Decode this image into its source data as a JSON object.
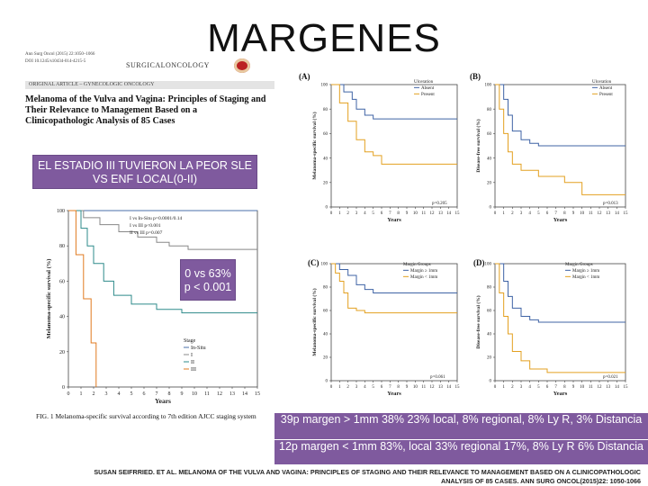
{
  "slide": {
    "title": "MARGENES"
  },
  "paper": {
    "journal_line": "Ann Surg Oncol (2015) 22:1050–1066",
    "doi_line": "DOI 10.1245/s10434-014-4215-5",
    "journal_name": "SURGICALONCOLOGY",
    "article_type": "ORIGINAL ARTICLE – GYNECOLOGIC ONCOLOGY",
    "title": "Melanoma of the Vulva and Vagina: Principles of Staging and Their Relevance to Management Based on a Clinicopathologic Analysis of 85 Cases"
  },
  "callouts": {
    "stage": "EL ESTADIO III TUVIERON LA PEOR SLE VS ENF LOCAL(0-II)",
    "pvalue_line1": "0 vs 63%",
    "pvalue_line2": "p < 0.001",
    "margin_pos": "39p margen > 1mm 38% 23% local, 8% regional, 8% Ly R, 3% Distancia",
    "margin_neg": "12p margen < 1mm 83%, local 33% regional 17%, 8% Ly R 6% Distancia"
  },
  "citation": {
    "line1": "SUSAN SEIFRRIED. ET AL. MELANOMA OF THE VULVA AND VAGINA: PRINCIPLES OF STAGING AND THEIR RELEVANCE TO MANAGEMENT BASED ON A CLINICOPATHOLOGIC",
    "line2": "ANALYSIS OF 85 CASES. ANN SURG ONCOL(2015)22: 1050-1066"
  },
  "figure": {
    "caption": "FIG. 1  Melanoma-specific survival according to 7th edition AJCC staging system"
  },
  "chart_data": [
    {
      "id": "fig1",
      "type": "line",
      "title": "",
      "xlabel": "Years",
      "ylabel": "Melanoma-specific survival (%)",
      "xlim": [
        0,
        15
      ],
      "ylim": [
        0,
        100
      ],
      "x_ticks": [
        "0",
        "1",
        "2",
        "3",
        "4",
        "5",
        "6",
        "7",
        "8",
        "9",
        "10",
        "11",
        "12",
        "13",
        "14",
        "15"
      ],
      "y_ticks": [
        "0",
        "20",
        "40",
        "60",
        "80",
        "100"
      ],
      "annotations": [
        "I vs In-Situ p=0.0001/0.14",
        "I vs III p<0.001",
        "II vs III p=0.007"
      ],
      "legend_title": "Stage",
      "series": [
        {
          "name": "In-Situ",
          "color": "#4a6fa8",
          "steps": [
            [
              0,
              100
            ],
            [
              15,
              100
            ]
          ]
        },
        {
          "name": "I",
          "color": "#888888",
          "steps": [
            [
              0,
              100
            ],
            [
              1.2,
              96
            ],
            [
              2.5,
              92
            ],
            [
              4,
              88
            ],
            [
              5.5,
              85
            ],
            [
              7,
              82
            ],
            [
              8,
              80
            ],
            [
              9.5,
              78
            ],
            [
              15,
              78
            ]
          ]
        },
        {
          "name": "II",
          "color": "#2e8b8b",
          "steps": [
            [
              0,
              100
            ],
            [
              1,
              90
            ],
            [
              1.5,
              80
            ],
            [
              2,
              70
            ],
            [
              2.8,
              60
            ],
            [
              3.6,
              52
            ],
            [
              5,
              47
            ],
            [
              7,
              44
            ],
            [
              9,
              42
            ],
            [
              15,
              42
            ]
          ]
        },
        {
          "name": "III",
          "color": "#e07b20",
          "steps": [
            [
              0,
              100
            ],
            [
              0.6,
              75
            ],
            [
              1.2,
              50
            ],
            [
              1.8,
              25
            ],
            [
              2.2,
              0
            ]
          ]
        }
      ]
    },
    {
      "id": "A",
      "panel": "(A)",
      "type": "line",
      "xlabel": "Years",
      "ylabel": "Melanoma-specific survival (%)",
      "xlim": [
        0,
        15
      ],
      "ylim": [
        0,
        100
      ],
      "x_ticks": [
        "0",
        "1",
        "2",
        "3",
        "4",
        "5",
        "6",
        "7",
        "8",
        "9",
        "10",
        "11",
        "12",
        "13",
        "14",
        "15"
      ],
      "y_ticks": [
        "0",
        "20",
        "40",
        "60",
        "80",
        "100"
      ],
      "legend_title": "Ulceration",
      "pvalue": "p=0.205",
      "series": [
        {
          "name": "Absent",
          "color": "#3f63a5",
          "steps": [
            [
              0,
              100
            ],
            [
              1.5,
              94
            ],
            [
              2.5,
              88
            ],
            [
              3,
              80
            ],
            [
              4,
              75
            ],
            [
              5,
              72
            ],
            [
              15,
              72
            ]
          ]
        },
        {
          "name": "Present",
          "color": "#e3a020",
          "steps": [
            [
              0,
              100
            ],
            [
              1,
              85
            ],
            [
              2,
              70
            ],
            [
              3,
              55
            ],
            [
              4,
              45
            ],
            [
              5,
              42
            ],
            [
              6,
              35
            ],
            [
              15,
              35
            ]
          ]
        }
      ]
    },
    {
      "id": "B",
      "panel": "(B)",
      "type": "line",
      "xlabel": "Years",
      "ylabel": "Disease-free survival (%)",
      "xlim": [
        0,
        15
      ],
      "ylim": [
        0,
        100
      ],
      "x_ticks": [
        "0",
        "1",
        "2",
        "3",
        "4",
        "5",
        "6",
        "7",
        "8",
        "9",
        "10",
        "11",
        "12",
        "13",
        "14",
        "15"
      ],
      "y_ticks": [
        "0",
        "20",
        "40",
        "60",
        "80",
        "100"
      ],
      "legend_title": "Ulceration",
      "pvalue": "p=0.013",
      "series": [
        {
          "name": "Absent",
          "color": "#3f63a5",
          "steps": [
            [
              0,
              100
            ],
            [
              1,
              88
            ],
            [
              1.5,
              75
            ],
            [
              2,
              62
            ],
            [
              3,
              55
            ],
            [
              4,
              52
            ],
            [
              5,
              50
            ],
            [
              15,
              50
            ]
          ]
        },
        {
          "name": "Present",
          "color": "#e3a020",
          "steps": [
            [
              0,
              100
            ],
            [
              0.5,
              80
            ],
            [
              1,
              60
            ],
            [
              1.5,
              45
            ],
            [
              2,
              35
            ],
            [
              3,
              30
            ],
            [
              5,
              25
            ],
            [
              8,
              20
            ],
            [
              10,
              10
            ],
            [
              15,
              10
            ]
          ]
        }
      ]
    },
    {
      "id": "C",
      "panel": "(C)",
      "type": "line",
      "xlabel": "Years",
      "ylabel": "Melanoma-specific survival (%)",
      "xlim": [
        0,
        15
      ],
      "ylim": [
        0,
        100
      ],
      "x_ticks": [
        "0",
        "1",
        "2",
        "3",
        "4",
        "5",
        "6",
        "7",
        "8",
        "9",
        "10",
        "11",
        "12",
        "13",
        "14",
        "15"
      ],
      "y_ticks": [
        "0",
        "20",
        "40",
        "60",
        "80",
        "100"
      ],
      "legend_title": "Margin Groups",
      "pvalue": "p=0.061",
      "series": [
        {
          "name": "Margin ≥ 1mm",
          "color": "#3f63a5",
          "steps": [
            [
              0,
              100
            ],
            [
              1,
              95
            ],
            [
              2,
              90
            ],
            [
              3,
              82
            ],
            [
              4,
              78
            ],
            [
              5,
              75
            ],
            [
              15,
              75
            ]
          ]
        },
        {
          "name": "Margin < 1mm",
          "color": "#e3a020",
          "steps": [
            [
              0,
              100
            ],
            [
              0.5,
              92
            ],
            [
              1,
              85
            ],
            [
              1.5,
              75
            ],
            [
              2,
              62
            ],
            [
              3,
              60
            ],
            [
              4,
              58
            ],
            [
              15,
              58
            ]
          ]
        }
      ]
    },
    {
      "id": "D",
      "panel": "(D)",
      "type": "line",
      "xlabel": "Years",
      "ylabel": "Disease-free survival (%)",
      "xlim": [
        0,
        15
      ],
      "ylim": [
        0,
        100
      ],
      "x_ticks": [
        "0",
        "1",
        "2",
        "3",
        "4",
        "5",
        "6",
        "7",
        "8",
        "9",
        "10",
        "11",
        "12",
        "13",
        "14",
        "15"
      ],
      "y_ticks": [
        "0",
        "20",
        "40",
        "60",
        "80",
        "100"
      ],
      "legend_title": "Margin Groups",
      "pvalue": "p=0.021",
      "series": [
        {
          "name": "Margin ≥ 1mm",
          "color": "#3f63a5",
          "steps": [
            [
              0,
              100
            ],
            [
              1,
              85
            ],
            [
              1.5,
              72
            ],
            [
              2,
              62
            ],
            [
              3,
              55
            ],
            [
              4,
              52
            ],
            [
              5,
              50
            ],
            [
              15,
              50
            ]
          ]
        },
        {
          "name": "Margin < 1mm",
          "color": "#e3a020",
          "steps": [
            [
              0,
              100
            ],
            [
              0.5,
              75
            ],
            [
              1,
              55
            ],
            [
              1.5,
              40
            ],
            [
              2,
              25
            ],
            [
              3,
              17
            ],
            [
              4,
              10
            ],
            [
              6,
              7
            ],
            [
              15,
              7
            ]
          ]
        }
      ]
    }
  ]
}
